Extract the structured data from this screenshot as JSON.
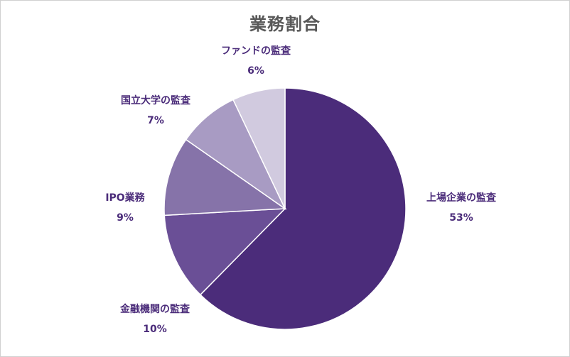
{
  "chart_data": {
    "type": "pie",
    "title": "業務割合",
    "slices": [
      {
        "label": "上場企業の監査",
        "value_label": "53%",
        "value": 53,
        "color": "#4b2c7a"
      },
      {
        "label": "金融機関の監査",
        "value_label": "10%",
        "value": 10,
        "color": "#6a4f96"
      },
      {
        "label": "IPO業務",
        "value_label": "9%",
        "value": 9,
        "color": "#8673a9"
      },
      {
        "label": "国立大学の監査",
        "value_label": "7%",
        "value": 7,
        "color": "#a89bc3"
      },
      {
        "label": "ファンドの監査",
        "value_label": "6%",
        "value": 6,
        "color": "#d1cadf"
      }
    ]
  }
}
